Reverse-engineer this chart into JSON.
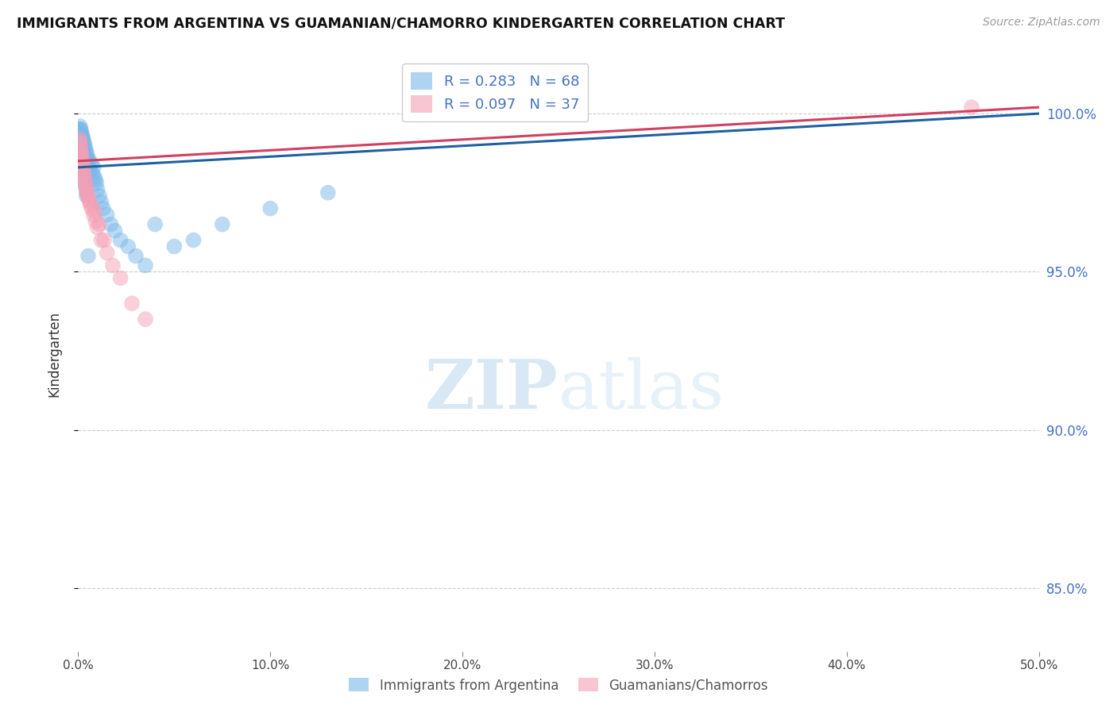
{
  "title": "IMMIGRANTS FROM ARGENTINA VS GUAMANIAN/CHAMORRO KINDERGARTEN CORRELATION CHART",
  "source": "Source: ZipAtlas.com",
  "ylabel": "Kindergarten",
  "x_min": 0.0,
  "x_max": 50.0,
  "y_min": 83.0,
  "y_max": 101.8,
  "y_ticks": [
    85.0,
    90.0,
    95.0,
    100.0
  ],
  "y_tick_labels": [
    "85.0%",
    "90.0%",
    "95.0%",
    "100.0%"
  ],
  "blue_color": "#7ab8e8",
  "pink_color": "#f4a0b5",
  "blue_line_color": "#2060a0",
  "pink_line_color": "#d04060",
  "legend_R_blue": "R = 0.283",
  "legend_N_blue": "N = 68",
  "legend_R_pink": "R = 0.097",
  "legend_N_pink": "N = 37",
  "blue_scatter_x": [
    0.05,
    0.08,
    0.1,
    0.12,
    0.14,
    0.16,
    0.18,
    0.2,
    0.22,
    0.24,
    0.26,
    0.28,
    0.3,
    0.32,
    0.34,
    0.36,
    0.38,
    0.4,
    0.42,
    0.44,
    0.46,
    0.48,
    0.5,
    0.55,
    0.6,
    0.65,
    0.7,
    0.75,
    0.8,
    0.85,
    0.9,
    0.95,
    1.0,
    1.1,
    1.2,
    1.3,
    1.5,
    1.7,
    1.9,
    2.2,
    2.6,
    3.0,
    3.5,
    4.0,
    5.0,
    6.0,
    7.5,
    10.0,
    13.0,
    0.07,
    0.09,
    0.11,
    0.13,
    0.15,
    0.17,
    0.19,
    0.21,
    0.23,
    0.25,
    0.27,
    0.29,
    0.31,
    0.33,
    0.35,
    0.37,
    0.41,
    0.43,
    0.52
  ],
  "blue_scatter_y": [
    99.5,
    99.4,
    99.6,
    99.3,
    99.5,
    99.2,
    99.4,
    99.1,
    99.3,
    99.0,
    99.2,
    98.9,
    99.1,
    98.8,
    99.0,
    98.7,
    98.9,
    98.6,
    98.8,
    98.5,
    98.7,
    98.4,
    98.6,
    98.3,
    98.5,
    98.2,
    98.4,
    98.1,
    98.3,
    98.0,
    97.9,
    97.8,
    97.6,
    97.4,
    97.2,
    97.0,
    96.8,
    96.5,
    96.3,
    96.0,
    95.8,
    95.5,
    95.2,
    96.5,
    95.8,
    96.0,
    96.5,
    97.0,
    97.5,
    99.3,
    99.5,
    99.2,
    99.4,
    99.1,
    99.3,
    99.0,
    99.2,
    98.9,
    99.1,
    98.8,
    98.6,
    98.4,
    98.2,
    98.0,
    97.8,
    97.6,
    97.4,
    95.5
  ],
  "pink_scatter_x": [
    0.06,
    0.1,
    0.14,
    0.18,
    0.22,
    0.26,
    0.3,
    0.35,
    0.4,
    0.45,
    0.5,
    0.6,
    0.7,
    0.8,
    0.9,
    1.0,
    1.2,
    1.5,
    1.8,
    2.2,
    2.8,
    3.5,
    0.08,
    0.12,
    0.16,
    0.2,
    0.24,
    0.28,
    0.32,
    0.38,
    0.44,
    0.55,
    0.65,
    0.85,
    1.1,
    1.35,
    46.5
  ],
  "pink_scatter_y": [
    99.2,
    99.0,
    98.8,
    98.6,
    98.4,
    98.3,
    98.1,
    97.9,
    97.7,
    97.5,
    97.4,
    97.2,
    97.0,
    96.8,
    96.6,
    96.4,
    96.0,
    95.6,
    95.2,
    94.8,
    94.0,
    93.5,
    99.1,
    98.9,
    98.7,
    98.5,
    98.3,
    98.1,
    97.9,
    97.7,
    97.5,
    97.3,
    97.1,
    96.9,
    96.5,
    96.0,
    100.2
  ]
}
